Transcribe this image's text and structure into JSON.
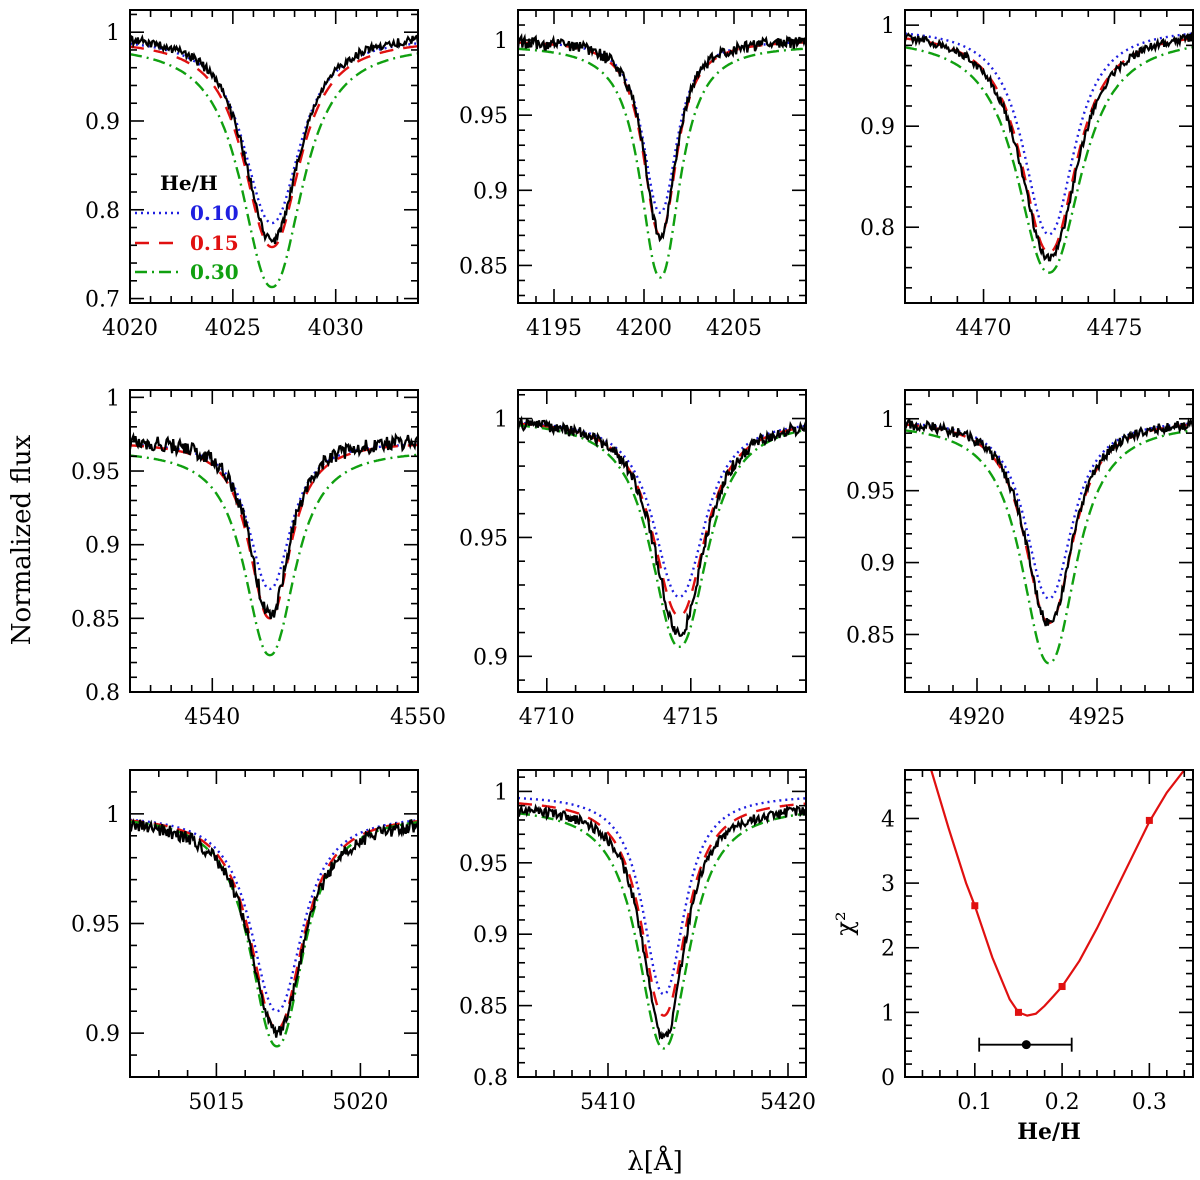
{
  "figure": {
    "xlabel": "λ[Å]",
    "ylabel": "Normalized flux"
  },
  "legend": {
    "title": "He/H",
    "entries": [
      {
        "label": "0.10",
        "color": "#1f1fe0",
        "style": "dotted"
      },
      {
        "label": "0.15",
        "color": "#e01010",
        "style": "dashed"
      },
      {
        "label": "0.30",
        "color": "#10a010",
        "style": "dashdot"
      }
    ]
  },
  "colors": {
    "observed": "#000000",
    "model_010": "#1f1fe0",
    "model_015": "#e01010",
    "model_030": "#10a010",
    "chi2_curve": "#e01010",
    "estimate": "#000000"
  },
  "chart_data": [
    {
      "type": "line",
      "panel": "4026",
      "line_center": 4026.9,
      "xlim": [
        4020,
        4034
      ],
      "ylim": [
        0.695,
        1.025
      ],
      "xticks": [
        4020,
        4025,
        4030
      ],
      "yticks": [
        0.7,
        0.8,
        0.9,
        1.0
      ],
      "ytick_labels": [
        "0.7",
        "0.8",
        "0.9",
        "1"
      ],
      "series": [
        {
          "name": "0.10",
          "depth": 0.21,
          "width": 1.6,
          "cont": 0.995
        },
        {
          "name": "0.15",
          "depth": 0.235,
          "width": 1.62,
          "cont": 0.993
        },
        {
          "name": "0.30",
          "depth": 0.275,
          "width": 1.75,
          "cont": 0.988
        },
        {
          "depth": 0.235,
          "width": 1.58,
          "cont": 1.0,
          "noise": 0.005
        }
      ]
    },
    {
      "type": "line",
      "panel": "4200",
      "line_center": 4200.9,
      "xlim": [
        4193,
        4209
      ],
      "ylim": [
        0.825,
        1.02
      ],
      "xticks": [
        4195,
        4200,
        4205
      ],
      "yticks": [
        0.85,
        0.9,
        0.95,
        1.0
      ],
      "ytick_labels": [
        "0.85",
        "0.9",
        "0.95",
        "1"
      ],
      "series": [
        {
          "name": "0.10",
          "depth": 0.115,
          "width": 1.1,
          "cont": 1.0
        },
        {
          "name": "0.15",
          "depth": 0.13,
          "width": 1.1,
          "cont": 1.0
        },
        {
          "name": "0.30",
          "depth": 0.155,
          "width": 1.3,
          "cont": 0.997
        },
        {
          "depth": 0.13,
          "width": 1.05,
          "cont": 1.0,
          "noise": 0.004
        }
      ]
    },
    {
      "type": "line",
      "panel": "4471",
      "line_center": 4472.5,
      "xlim": [
        4467,
        4478
      ],
      "ylim": [
        0.725,
        1.015
      ],
      "xticks": [
        4470,
        4475
      ],
      "yticks": [
        0.8,
        0.9,
        1.0
      ],
      "ytick_labels": [
        "0.8",
        "0.9",
        "1"
      ],
      "series": [
        {
          "name": "0.10",
          "depth": 0.205,
          "width": 1.15,
          "cont": 0.998
        },
        {
          "name": "0.15",
          "depth": 0.22,
          "width": 1.25,
          "cont": 0.995
        },
        {
          "name": "0.30",
          "depth": 0.235,
          "width": 1.45,
          "cont": 0.99
        },
        {
          "depth": 0.228,
          "width": 1.3,
          "cont": 0.997,
          "noise": 0.004
        }
      ]
    },
    {
      "type": "line",
      "panel": "4541",
      "line_center": 4542.8,
      "xlim": [
        4536,
        4550
      ],
      "ylim": [
        0.8,
        1.005
      ],
      "xticks": [
        4540,
        4550
      ],
      "yticks": [
        0.8,
        0.85,
        0.9,
        0.95,
        1.0
      ],
      "ytick_labels": [
        "0.8",
        "0.85",
        "0.9",
        "0.95",
        "1"
      ],
      "series": [
        {
          "name": "0.10",
          "depth": 0.1,
          "width": 1.2,
          "cont": 0.97
        },
        {
          "name": "0.15",
          "depth": 0.12,
          "width": 1.2,
          "cont": 0.97
        },
        {
          "name": "0.30",
          "depth": 0.14,
          "width": 1.45,
          "cont": 0.965
        },
        {
          "depth": 0.12,
          "width": 1.15,
          "cont": 0.972,
          "noise": 0.005
        }
      ]
    },
    {
      "type": "line",
      "panel": "4713",
      "line_center": 4714.6,
      "xlim": [
        4709,
        4719
      ],
      "ylim": [
        0.885,
        1.012
      ],
      "xticks": [
        4710,
        4715
      ],
      "yticks": [
        0.9,
        0.95,
        1.0
      ],
      "ytick_labels": [
        "0.9",
        "0.95",
        "1"
      ],
      "series": [
        {
          "name": "0.10",
          "depth": 0.075,
          "width": 1.05,
          "cont": 1.0
        },
        {
          "name": "0.15",
          "depth": 0.083,
          "width": 1.08,
          "cont": 1.0
        },
        {
          "name": "0.30",
          "depth": 0.096,
          "width": 1.15,
          "cont": 1.0
        },
        {
          "depth": 0.09,
          "width": 1.05,
          "cont": 1.0,
          "noise": 0.0025
        }
      ]
    },
    {
      "type": "line",
      "panel": "4922",
      "line_center": 4923.0,
      "xlim": [
        4917,
        4929
      ],
      "ylim": [
        0.81,
        1.02
      ],
      "xticks": [
        4920,
        4925
      ],
      "yticks": [
        0.85,
        0.9,
        0.95,
        1.0
      ],
      "ytick_labels": [
        "0.85",
        "0.9",
        "0.95",
        "1"
      ],
      "series": [
        {
          "name": "0.10",
          "depth": 0.125,
          "width": 1.15,
          "cont": 1.0
        },
        {
          "name": "0.15",
          "depth": 0.142,
          "width": 1.2,
          "cont": 1.0
        },
        {
          "name": "0.30",
          "depth": 0.168,
          "width": 1.35,
          "cont": 0.998
        },
        {
          "depth": 0.142,
          "width": 1.17,
          "cont": 1.0,
          "noise": 0.0035
        }
      ]
    },
    {
      "type": "line",
      "panel": "5016",
      "line_center": 5017.1,
      "xlim": [
        5012,
        5022
      ],
      "ylim": [
        0.88,
        1.02
      ],
      "xticks": [
        5015,
        5020
      ],
      "yticks": [
        0.9,
        0.95,
        1.0
      ],
      "ytick_labels": [
        "0.9",
        "0.95",
        "1"
      ],
      "series": [
        {
          "name": "0.10",
          "depth": 0.09,
          "width": 1.05,
          "cont": 1.0
        },
        {
          "name": "0.15",
          "depth": 0.098,
          "width": 1.07,
          "cont": 1.0
        },
        {
          "name": "0.30",
          "depth": 0.106,
          "width": 1.1,
          "cont": 1.0
        },
        {
          "depth": 0.098,
          "width": 1.1,
          "cont": 0.998,
          "noise": 0.003
        }
      ]
    },
    {
      "type": "line",
      "panel": "5411",
      "line_center": 5413.1,
      "xlim": [
        5405,
        5421
      ],
      "ylim": [
        0.8,
        1.015
      ],
      "xticks": [
        5410,
        5420
      ],
      "yticks": [
        0.8,
        0.85,
        0.9,
        0.95,
        1.0
      ],
      "ytick_labels": [
        "0.8",
        "0.85",
        "0.9",
        "0.95",
        "1"
      ],
      "series": [
        {
          "name": "0.10",
          "depth": 0.14,
          "width": 1.35,
          "cont": 0.998
        },
        {
          "name": "0.15",
          "depth": 0.152,
          "width": 1.45,
          "cont": 0.995
        },
        {
          "name": "0.30",
          "depth": 0.17,
          "width": 1.7,
          "cont": 0.99
        },
        {
          "depth": 0.163,
          "width": 1.4,
          "cont": 0.99,
          "noise": 0.0035
        }
      ]
    },
    {
      "type": "line",
      "panel": "chi2",
      "xlabel": "He/H",
      "ylabel": "χ²",
      "xlim": [
        0.02,
        0.35
      ],
      "ylim": [
        0,
        4.75
      ],
      "xticks": [
        0.1,
        0.2,
        0.3
      ],
      "xtick_labels": [
        "0.1",
        "0.2",
        "0.3"
      ],
      "yticks": [
        0,
        1,
        2,
        3,
        4
      ],
      "ytick_labels": [
        "0",
        "1",
        "2",
        "3",
        "4"
      ],
      "curve": {
        "x": [
          0.05,
          0.07,
          0.09,
          0.1,
          0.12,
          0.14,
          0.15,
          0.16,
          0.17,
          0.18,
          0.19,
          0.2,
          0.22,
          0.24,
          0.26,
          0.28,
          0.3,
          0.32,
          0.34
        ],
        "y": [
          4.75,
          3.85,
          3.0,
          2.65,
          1.85,
          1.2,
          1.0,
          0.95,
          0.98,
          1.1,
          1.25,
          1.4,
          1.8,
          2.3,
          2.85,
          3.4,
          3.95,
          4.4,
          4.75
        ]
      },
      "points": {
        "x": [
          0.1,
          0.15,
          0.2,
          0.3
        ],
        "y": [
          2.65,
          1.0,
          1.4,
          3.97
        ]
      },
      "estimate": {
        "x": 0.159,
        "y": 0.5,
        "xerr_low": 0.105,
        "xerr_high": 0.211
      }
    }
  ]
}
